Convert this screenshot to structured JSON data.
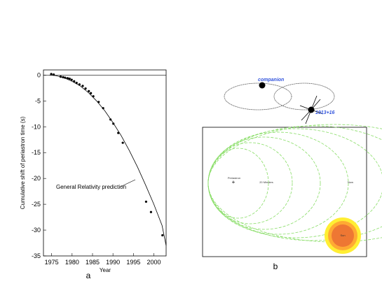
{
  "chart_data": [
    {
      "type": "line",
      "panel_label": "a",
      "xlabel": "Year",
      "ylabel": "Cumulative shift of periastron time (s)",
      "xlim": [
        1973,
        2003
      ],
      "ylim": [
        -35,
        1
      ],
      "x_ticks": [
        1975,
        1980,
        1985,
        1990,
        1995,
        2000
      ],
      "y_ticks": [
        0,
        -5,
        -10,
        -15,
        -20,
        -25,
        -30,
        -35
      ],
      "grid": false,
      "annotation": "General Relativity prediction",
      "curve": {
        "x": [
          1974.5,
          1976,
          1978,
          1980,
          1982,
          1984,
          1986,
          1988,
          1990,
          1992,
          1994,
          1996,
          1998,
          2000,
          2002,
          2003
        ],
        "y": [
          0,
          -0.1,
          -0.5,
          -1.2,
          -2.1,
          -3.4,
          -5.0,
          -6.9,
          -9.2,
          -11.7,
          -14.6,
          -17.8,
          -21.3,
          -25.0,
          -29.1,
          -33.0
        ]
      },
      "points": {
        "x": [
          1974.9,
          1975.5,
          1977.2,
          1977.8,
          1978.3,
          1978.9,
          1979.4,
          1979.9,
          1980.5,
          1981.1,
          1981.8,
          1982.6,
          1983.3,
          1984.1,
          1984.6,
          1985.2,
          1986.5,
          1987.6,
          1989.4,
          1990.1,
          1991.3,
          1992.4,
          1998.1,
          1999.3,
          2002.1
        ],
        "y": [
          0.2,
          0.1,
          -0.3,
          -0.4,
          -0.5,
          -0.6,
          -0.7,
          -0.9,
          -1.2,
          -1.5,
          -1.8,
          -2.1,
          -2.6,
          -3.1,
          -3.5,
          -4.1,
          -5.2,
          -6.4,
          -8.6,
          -9.4,
          -11.2,
          -13.1,
          -24.5,
          -26.5,
          -31.0
        ]
      }
    },
    {
      "type": "diagram",
      "panel_label": "b",
      "orbit_labels": [
        "companion",
        "1913+16"
      ],
      "inset_labels": {
        "focus": "Periastron",
        "mid": "20 Minutes",
        "right": "Now",
        "sun": "Sun"
      },
      "colors": {
        "label_blue": "#3355dd",
        "orbit_green": "#88dd66",
        "sun_outer": "#ffee33",
        "sun_inner": "#ee7733"
      }
    }
  ]
}
